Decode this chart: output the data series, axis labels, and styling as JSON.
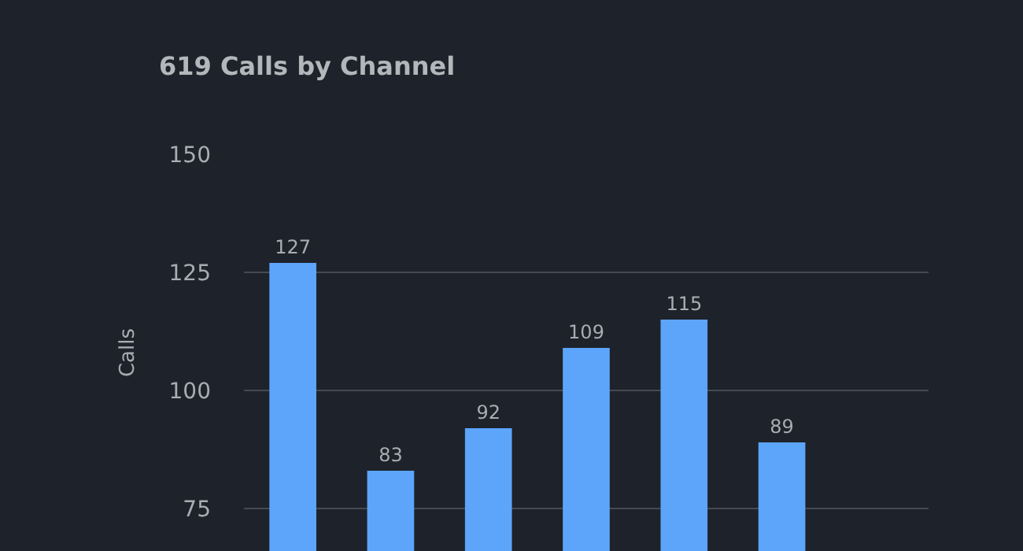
{
  "chart_data": {
    "type": "bar",
    "title": "619 Calls by Channel",
    "ylabel": "Calls",
    "categories": [
      null,
      null,
      null,
      null,
      null,
      null,
      null
    ],
    "values": [
      127,
      83,
      92,
      109,
      115,
      89,
      null
    ],
    "color": "#5ca5fb",
    "ylim": [
      66,
      150
    ],
    "yticks": [
      75,
      100,
      125,
      150
    ],
    "grid": "y",
    "data_labels": true
  }
}
